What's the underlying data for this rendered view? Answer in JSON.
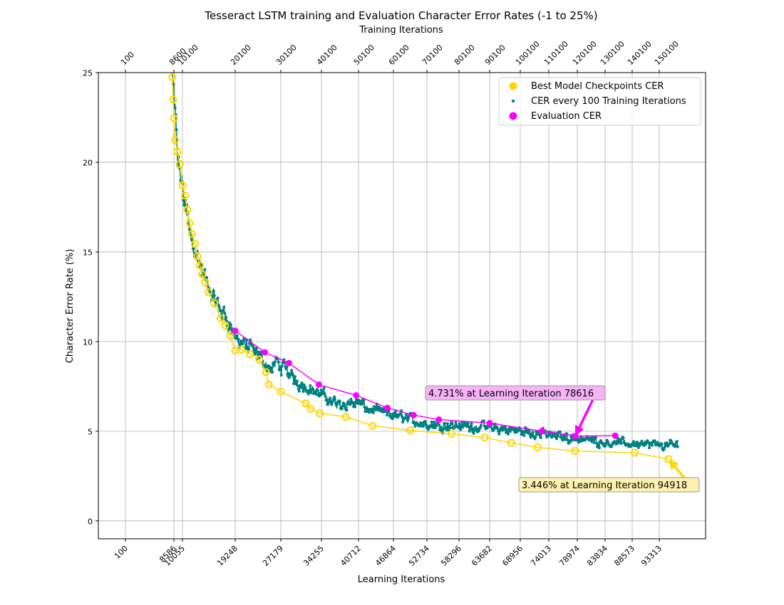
{
  "chart_data": {
    "type": "scatter",
    "title": "Tesseract LSTM training and Evaluation Character Error Rates (-1 to 25%)",
    "xlabel": "Learning Iterations",
    "x2label": "Training Iterations",
    "ylabel": "Character Error Rate (%)",
    "ylim": [
      -1,
      25
    ],
    "grid": true,
    "legend_position": "top-right",
    "y_ticks": [
      "0",
      "5",
      "10",
      "15",
      "20",
      "25"
    ],
    "x_bottom_ticks": [
      "100",
      "8586",
      "10055",
      "19248",
      "27179",
      "34255",
      "40712",
      "46864",
      "52734",
      "58296",
      "63682",
      "68956",
      "74013",
      "78974",
      "83834",
      "88573",
      "93313"
    ],
    "x_top_ticks": [
      "100",
      "8600",
      "10100",
      "20100",
      "30100",
      "40100",
      "50100",
      "60100",
      "70100",
      "80100",
      "90100",
      "100100",
      "110100",
      "120100",
      "130100",
      "140100",
      "150100"
    ],
    "colors": {
      "checkpoints": "#FFD700",
      "training": "#008080",
      "evaluation": "#FF00FF"
    },
    "series": [
      {
        "name": "Best Model Checkpoints CER",
        "x": [
          8300,
          8450,
          8600,
          8800,
          9200,
          9600,
          10055,
          10500,
          10900,
          11300,
          11700,
          12200,
          12700,
          13100,
          13500,
          14000,
          14600,
          15600,
          16700,
          17500,
          18400,
          19248,
          20300,
          21800,
          23400,
          24600,
          25100,
          27179,
          31500,
          32400,
          34000,
          38500,
          43200,
          49800,
          57000,
          62800,
          67400,
          72000,
          78616,
          89000,
          94918
        ],
        "y": [
          24.75,
          23.5,
          22.45,
          21.25,
          20.6,
          19.9,
          18.7,
          18.15,
          17.35,
          16.6,
          16.0,
          15.45,
          14.75,
          14.25,
          13.75,
          13.3,
          12.75,
          12.15,
          11.3,
          10.9,
          10.3,
          9.5,
          9.55,
          9.3,
          9.0,
          8.3,
          7.6,
          7.2,
          6.55,
          6.25,
          6.0,
          5.8,
          5.3,
          5.05,
          4.85,
          4.65,
          4.35,
          4.1,
          3.9,
          3.8,
          3.446
        ]
      },
      {
        "name": "CER every 100 Training Iterations",
        "anchor_x": [
          8300,
          9200,
          10055,
          11300,
          13500,
          15600,
          18000,
          19248,
          22000,
          24000,
          25500,
          26500,
          27179,
          30000,
          34255,
          37000,
          40712,
          42500,
          46864,
          52734,
          58296,
          63682,
          68956,
          74013,
          78974,
          83834,
          88573,
          93313,
          96500
        ],
        "anchor_y": [
          24.9,
          20.3,
          18.5,
          16.3,
          13.8,
          12.3,
          11.2,
          10.2,
          9.6,
          9.0,
          8.4,
          8.9,
          8.6,
          7.8,
          7.0,
          6.5,
          6.6,
          6.2,
          5.9,
          5.4,
          5.3,
          5.2,
          5.0,
          4.8,
          4.6,
          4.4,
          4.3,
          4.2,
          4.2
        ]
      },
      {
        "name": "Evaluation CER",
        "x": [
          19248,
          24400,
          28600,
          33800,
          40300,
          45800,
          50400,
          54800,
          63700,
          72800,
          78616,
          85600
        ],
        "y": [
          10.6,
          9.4,
          8.8,
          7.6,
          7.0,
          6.3,
          5.9,
          5.65,
          5.45,
          5.0,
          4.731,
          4.75
        ]
      }
    ],
    "annotations": [
      {
        "text": "4.731% at Learning Iteration 78616",
        "x": 78616,
        "y": 4.731,
        "color": "#FF00FF"
      },
      {
        "text": "3.446% at Learning Iteration 94918",
        "x": 94918,
        "y": 3.446,
        "color": "#FFD700"
      }
    ]
  }
}
